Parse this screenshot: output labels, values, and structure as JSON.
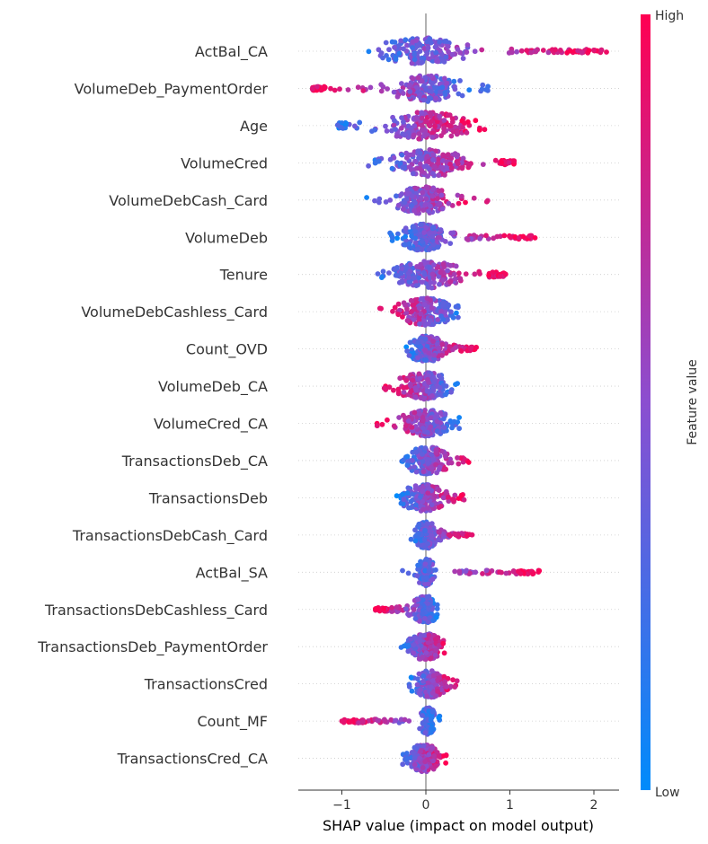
{
  "chart_data": {
    "type": "scatter",
    "subtype": "shap-beeswarm",
    "title": "",
    "xlabel": "SHAP value (impact on model output)",
    "ylabel": "",
    "xlim": [
      -1.5,
      2.3
    ],
    "xticks": [
      -1,
      0,
      1,
      2
    ],
    "xtick_labels": [
      "−1",
      "0",
      "1",
      "2"
    ],
    "zero_line": true,
    "colorbar": {
      "label": "Feature value",
      "high_label": "High",
      "low_label": "Low",
      "low_color": "#008bfb",
      "mid_color": "#8b4ed0",
      "high_color": "#ff0052"
    },
    "features": [
      {
        "name": "ActBal_CA",
        "min": -0.95,
        "max": 2.15,
        "core": [
          -0.6,
          0.5
        ],
        "high_side": "right",
        "tail": [
          1.2,
          1.68,
          1.72,
          2.15
        ]
      },
      {
        "name": "VolumeDeb_PaymentOrder",
        "min": -1.35,
        "max": 0.8,
        "core": [
          -0.4,
          0.45
        ],
        "high_side": "left",
        "tail": [
          -1.35,
          -1.2
        ]
      },
      {
        "name": "Age",
        "min": -1.05,
        "max": 0.7,
        "core": [
          -0.6,
          0.55
        ],
        "high_side": "right",
        "tail": [
          -1.05,
          -0.95
        ]
      },
      {
        "name": "VolumeCred",
        "min": -0.8,
        "max": 1.05,
        "core": [
          -0.4,
          0.5
        ],
        "high_side": "right",
        "tail": [
          0.9,
          1.05
        ]
      },
      {
        "name": "VolumeDebCash_Card",
        "min": -0.75,
        "max": 0.8,
        "core": [
          -0.4,
          0.3
        ],
        "high_side": "right",
        "tail": []
      },
      {
        "name": "VolumeDeb",
        "min": -0.45,
        "max": 1.3,
        "core": [
          -0.3,
          0.25
        ],
        "high_side": "right",
        "tail": [
          0.5,
          1.3
        ]
      },
      {
        "name": "Tenure",
        "min": -0.6,
        "max": 0.95,
        "core": [
          -0.4,
          0.45
        ],
        "high_side": "right",
        "tail": [
          0.75,
          0.95
        ]
      },
      {
        "name": "VolumeDebCashless_Card",
        "min": -0.55,
        "max": 0.45,
        "core": [
          -0.35,
          0.35
        ],
        "high_side": "left",
        "tail": []
      },
      {
        "name": "Count_OVD",
        "min": -0.25,
        "max": 0.6,
        "core": [
          -0.2,
          0.2
        ],
        "high_side": "right",
        "tail": [
          0.1,
          0.6
        ]
      },
      {
        "name": "VolumeDeb_CA",
        "min": -0.55,
        "max": 0.4,
        "core": [
          -0.35,
          0.35
        ],
        "high_side": "left",
        "tail": []
      },
      {
        "name": "VolumeCred_CA",
        "min": -0.6,
        "max": 0.45,
        "core": [
          -0.3,
          0.35
        ],
        "high_side": "left",
        "tail": []
      },
      {
        "name": "TransactionsDeb_CA",
        "min": -0.3,
        "max": 0.55,
        "core": [
          -0.25,
          0.3
        ],
        "high_side": "right",
        "tail": []
      },
      {
        "name": "TransactionsDeb",
        "min": -0.35,
        "max": 0.5,
        "core": [
          -0.3,
          0.25
        ],
        "high_side": "right",
        "tail": []
      },
      {
        "name": "TransactionsDebCash_Card",
        "min": -0.2,
        "max": 0.55,
        "core": [
          -0.12,
          0.12
        ],
        "high_side": "right",
        "tail": [
          0.15,
          0.55
        ]
      },
      {
        "name": "ActBal_SA",
        "min": -0.35,
        "max": 1.35,
        "core": [
          -0.1,
          0.1
        ],
        "high_side": "right",
        "tail": [
          0.4,
          1.35
        ]
      },
      {
        "name": "TransactionsDebCashless_Card",
        "min": -0.6,
        "max": 0.15,
        "core": [
          -0.15,
          0.15
        ],
        "high_side": "left",
        "tail": [
          -0.6,
          -0.2
        ]
      },
      {
        "name": "TransactionsDeb_PaymentOrder",
        "min": -0.3,
        "max": 0.3,
        "core": [
          -0.2,
          0.2
        ],
        "high_side": "right",
        "tail": []
      },
      {
        "name": "TransactionsCred",
        "min": -0.2,
        "max": 0.4,
        "core": [
          -0.15,
          0.25
        ],
        "high_side": "right",
        "tail": []
      },
      {
        "name": "Count_MF",
        "min": -1.0,
        "max": 0.2,
        "core": [
          -0.05,
          0.1
        ],
        "high_side": "left",
        "tail": [
          -1.0,
          -0.25
        ]
      },
      {
        "name": "TransactionsCred_CA",
        "min": -0.3,
        "max": 0.25,
        "core": [
          -0.25,
          0.2
        ],
        "high_side": "right",
        "tail": []
      }
    ]
  }
}
